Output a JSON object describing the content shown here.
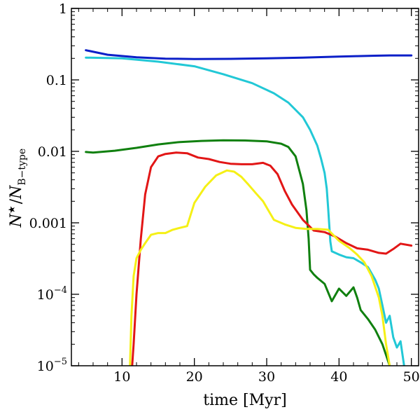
{
  "chart_data": {
    "type": "line",
    "xlabel": "time [Myr]",
    "ylabel": {
      "main": "N",
      "superscript": "★",
      "slash": "/",
      "denom": "N",
      "denom_sub": "B−type"
    },
    "xlim": [
      3,
      51
    ],
    "ylim": [
      1e-05,
      1
    ],
    "yscale": "log",
    "x_ticks": [
      10,
      20,
      30,
      40,
      50
    ],
    "x_tick_labels": [
      "10",
      "20",
      "30",
      "40",
      "50"
    ],
    "y_ticks": [
      1,
      0.1,
      0.01,
      0.001,
      0.0001,
      1e-05
    ],
    "y_tick_labels": [
      {
        "base": "1",
        "exp": ""
      },
      {
        "base": "0.1",
        "exp": ""
      },
      {
        "base": "0.01",
        "exp": ""
      },
      {
        "base": "0.001",
        "exp": ""
      },
      {
        "base": "10",
        "exp": "−4"
      },
      {
        "base": "10",
        "exp": "−5"
      }
    ],
    "series": [
      {
        "name": "blue",
        "color": "#0b1fc8",
        "x": [
          5,
          8,
          12,
          16,
          20,
          25,
          30,
          35,
          40,
          42.5,
          45,
          47,
          50
        ],
        "y": [
          0.26,
          0.225,
          0.207,
          0.198,
          0.196,
          0.197,
          0.2,
          0.205,
          0.212,
          0.215,
          0.218,
          0.22,
          0.22
        ]
      },
      {
        "name": "cyan",
        "color": "#22c8d6",
        "x": [
          5,
          10,
          15,
          20,
          24,
          28,
          31,
          33,
          35,
          36,
          37,
          37.5,
          38,
          38.3,
          38.5,
          38.8,
          39,
          40,
          41,
          42,
          43,
          44,
          45,
          45.5,
          46,
          46.5,
          47,
          47.5,
          48,
          48.5,
          49
        ],
        "y": [
          0.205,
          0.2,
          0.18,
          0.155,
          0.12,
          0.09,
          0.065,
          0.048,
          0.03,
          0.02,
          0.012,
          0.008,
          0.005,
          0.003,
          0.0016,
          0.00055,
          0.0004,
          0.00036,
          0.00033,
          0.00032,
          0.00028,
          0.00024,
          0.00016,
          0.00012,
          7e-05,
          4e-05,
          5e-05,
          2.5e-05,
          1.8e-05,
          2.2e-05,
          1e-05
        ]
      },
      {
        "name": "green",
        "color": "#10800f",
        "x": [
          5,
          6,
          7,
          8,
          9,
          10,
          12,
          15,
          18,
          21,
          24,
          27,
          30,
          32,
          33,
          34,
          35,
          35.5,
          35.8,
          36,
          36.5,
          37,
          38,
          39,
          40,
          41,
          42,
          42.5,
          43,
          44,
          45,
          46,
          47
        ],
        "y": [
          0.0098,
          0.0096,
          0.0098,
          0.01,
          0.0102,
          0.0105,
          0.0112,
          0.0125,
          0.0135,
          0.014,
          0.0143,
          0.0142,
          0.0138,
          0.0128,
          0.0115,
          0.0085,
          0.0035,
          0.0015,
          0.0006,
          0.00022,
          0.00019,
          0.00017,
          0.00014,
          8e-05,
          0.00012,
          9.5e-05,
          0.000125,
          9e-05,
          6e-05,
          4.5e-05,
          3.2e-05,
          2e-05,
          1e-05
        ]
      },
      {
        "name": "red",
        "color": "#e21616",
        "x": [
          11.4,
          11.6,
          12,
          12.6,
          13.2,
          14,
          15,
          16,
          17.5,
          19,
          20.5,
          22,
          23.5,
          25,
          26.5,
          28,
          29.5,
          30.5,
          31.5,
          32.5,
          33.5,
          35,
          36.5,
          38,
          39.5,
          41,
          42.5,
          44,
          45.5,
          46.5,
          47.5,
          48.5,
          50
        ],
        "y": [
          1e-05,
          2e-05,
          0.0001,
          0.0006,
          0.0025,
          0.006,
          0.0085,
          0.0092,
          0.0096,
          0.0094,
          0.0082,
          0.0078,
          0.0071,
          0.0067,
          0.0066,
          0.0066,
          0.0069,
          0.0063,
          0.0048,
          0.0028,
          0.0018,
          0.0011,
          0.00078,
          0.00074,
          0.00064,
          0.00052,
          0.00044,
          0.00042,
          0.00038,
          0.00037,
          0.00043,
          0.00051,
          0.00048
        ]
      },
      {
        "name": "yellow",
        "color": "#f5f016",
        "x": [
          11.1,
          11.3,
          11.6,
          12,
          12.6,
          13.2,
          14,
          15,
          16,
          17,
          18,
          19,
          20,
          21.5,
          23,
          24.5,
          25.5,
          26.5,
          27.5,
          28.5,
          29.5,
          31,
          32.5,
          34,
          35.5,
          37,
          38.5,
          40,
          41.5,
          42.5,
          43.5,
          44.5,
          45.5,
          46,
          46.5,
          47
        ],
        "y": [
          1e-05,
          5e-05,
          0.00018,
          0.00032,
          0.00042,
          0.00052,
          0.00068,
          0.00072,
          0.00072,
          0.0008,
          0.00085,
          0.0009,
          0.0019,
          0.0032,
          0.0046,
          0.0054,
          0.0052,
          0.0044,
          0.0034,
          0.0026,
          0.002,
          0.0011,
          0.00095,
          0.00085,
          0.00082,
          0.00082,
          0.0008,
          0.00056,
          0.00044,
          0.00036,
          0.00028,
          0.00018,
          9e-05,
          5e-05,
          2e-05,
          1e-05
        ]
      }
    ]
  }
}
